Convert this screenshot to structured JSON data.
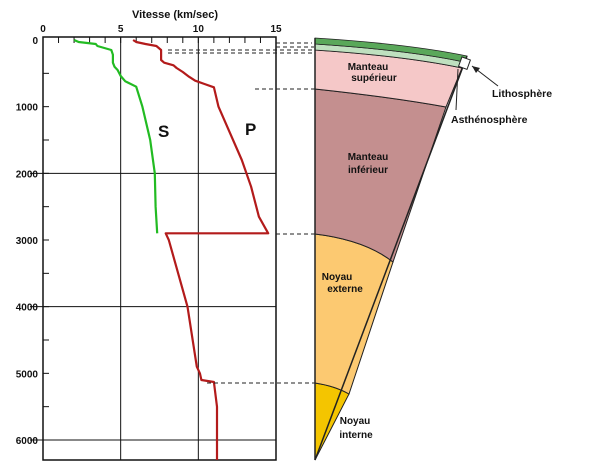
{
  "chart_data": {
    "type": "line",
    "title": "Vitesse (km/sec)",
    "xlabel": "Vitesse (km/sec)",
    "ylabel": "",
    "xlim": [
      0,
      15
    ],
    "ylim": [
      0,
      6300
    ],
    "x_ticks": [
      "0",
      "5",
      "10",
      "15"
    ],
    "y_ticks": [
      "0",
      "1000",
      "2000",
      "3000",
      "4000",
      "5000",
      "6000"
    ],
    "series": [
      {
        "name": "S",
        "color": "#22bb22",
        "points": [
          [
            2.0,
            0
          ],
          [
            2.3,
            30
          ],
          [
            3.4,
            60
          ],
          [
            3.5,
            90
          ],
          [
            4.4,
            150
          ],
          [
            4.5,
            220
          ],
          [
            4.5,
            340
          ],
          [
            4.6,
            400
          ],
          [
            4.8,
            450
          ],
          [
            5.0,
            540
          ],
          [
            5.3,
            620
          ],
          [
            6.0,
            700
          ],
          [
            6.4,
            1000
          ],
          [
            6.9,
            1500
          ],
          [
            7.2,
            2000
          ],
          [
            7.25,
            2500
          ],
          [
            7.35,
            2900
          ]
        ]
      },
      {
        "name": "P",
        "color": "#b31b1b",
        "points": [
          [
            5.8,
            0
          ],
          [
            6.0,
            30
          ],
          [
            6.6,
            60
          ],
          [
            7.3,
            90
          ],
          [
            7.6,
            150
          ],
          [
            7.6,
            300
          ],
          [
            7.8,
            340
          ],
          [
            8.4,
            380
          ],
          [
            8.6,
            420
          ],
          [
            9.0,
            480
          ],
          [
            9.4,
            550
          ],
          [
            9.8,
            610
          ],
          [
            10.4,
            660
          ],
          [
            11.0,
            710
          ],
          [
            11.3,
            1000
          ],
          [
            12.8,
            1800
          ],
          [
            13.4,
            2200
          ],
          [
            13.9,
            2650
          ],
          [
            14.5,
            2900
          ],
          [
            7.9,
            2900
          ],
          [
            8.1,
            3000
          ],
          [
            9.3,
            4000
          ],
          [
            9.9,
            4900
          ],
          [
            10.1,
            5000
          ],
          [
            10.2,
            5100
          ],
          [
            11.0,
            5130
          ],
          [
            11.2,
            5500
          ],
          [
            11.2,
            6300
          ]
        ]
      }
    ]
  },
  "earth_section": {
    "layers": [
      {
        "name": "Lithosphère",
        "color": "#5aa85a"
      },
      {
        "name": "Asthénosphère",
        "color": "#bfe0bf"
      },
      {
        "name": "Manteau supérieur",
        "line1": "Manteau",
        "line2": "supérieur",
        "color": "#f5c8c8"
      },
      {
        "name": "Manteau inférieur",
        "line1": "Manteau",
        "line2": "inférieur",
        "color": "#c48f8f"
      },
      {
        "name": "Noyau externe",
        "line1": "Noyau",
        "line2": "externe",
        "color": "#fcc971"
      },
      {
        "name": "Noyau interne",
        "line1": "Noyau",
        "line2": "interne",
        "color": "#f4c500"
      }
    ],
    "callouts": {
      "lithosphere": "Lithosphère",
      "asthenosphere": "Asthénosphère"
    }
  }
}
